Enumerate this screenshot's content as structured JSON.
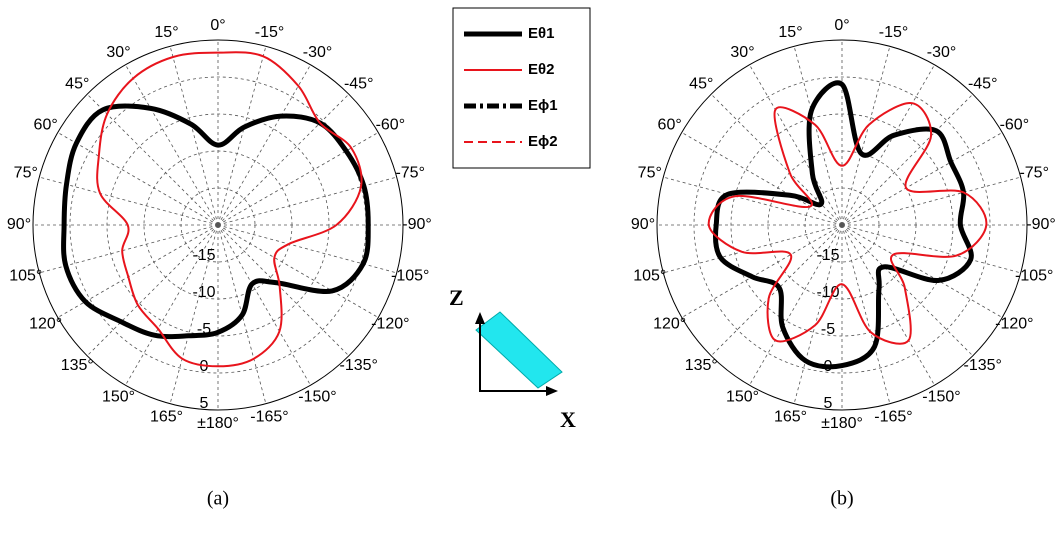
{
  "chart_data": [
    {
      "type": "polar",
      "caption": "(a)",
      "legend": "upper center",
      "theta": [
        0,
        15,
        30,
        45,
        60,
        75,
        90,
        105,
        120,
        135,
        150,
        165,
        180,
        -165,
        -150,
        -135,
        -120,
        -105,
        -90,
        -75,
        -60,
        -45,
        -30,
        -15
      ],
      "rlim": [
        -20,
        5
      ],
      "rticks": [
        -15,
        -10,
        -5,
        0,
        5
      ],
      "thetaticks": [
        {
          "value": 0,
          "label": "0°"
        },
        {
          "value": 15,
          "label": "15°"
        },
        {
          "value": 30,
          "label": "30°"
        },
        {
          "value": 45,
          "label": "45°"
        },
        {
          "value": 60,
          "label": "60°"
        },
        {
          "value": 75,
          "label": "75°"
        },
        {
          "value": 90,
          "label": "90°"
        },
        {
          "value": 105,
          "label": "105°"
        },
        {
          "value": 120,
          "label": "120°"
        },
        {
          "value": 135,
          "label": "135°"
        },
        {
          "value": 150,
          "label": "150°"
        },
        {
          "value": 165,
          "label": "165°"
        },
        {
          "value": 180,
          "label": "±180°"
        },
        {
          "value": -165,
          "label": "-165°"
        },
        {
          "value": -150,
          "label": "-150°"
        },
        {
          "value": -135,
          "label": "-135°"
        },
        {
          "value": -120,
          "label": "-120°"
        },
        {
          "value": -105,
          "label": "-105°"
        },
        {
          "value": -90,
          "label": "-90°"
        },
        {
          "value": -75,
          "label": "-75°"
        },
        {
          "value": -60,
          "label": "-60°"
        },
        {
          "value": -45,
          "label": "-45°"
        },
        {
          "value": -30,
          "label": "-30°"
        },
        {
          "value": -15,
          "label": "-15°"
        }
      ],
      "grid": true,
      "series": [
        {
          "name": "Eθ1",
          "color": "#000000",
          "dash": "solid",
          "values": [
            -9.2,
            -5.9,
            -1.8,
            2,
            2.1,
            1.2,
            0.8,
            1.3,
            0.7,
            -1.5,
            -2.8,
            -4.5,
            -5.5,
            -7.4,
            -10.8,
            -9,
            -2.2,
            0.3,
            0.3,
            0.4,
            0,
            -0.5,
            -3,
            -6.3
          ]
        },
        {
          "name": "Eθ2",
          "color": "#e8141c",
          "dash": "solid",
          "values": [
            3.3,
            3.5,
            2.9,
            1.2,
            -1.4,
            -3.5,
            -7.8,
            -6.6,
            -6,
            -4.7,
            -3.8,
            -1.3,
            -0.9,
            -1.3,
            -3.4,
            -8.2,
            -11.2,
            -10.1,
            -4,
            0,
            0.8,
            -0.5,
            1.7,
            3.6
          ]
        },
        {
          "name": "Eϕ1",
          "color": "#000000",
          "dash": "dashdot",
          "values": [
            -20,
            -20,
            -20,
            -20,
            -20,
            -20,
            -20,
            -20,
            -20,
            -20,
            -20,
            -20,
            -20,
            -20,
            -20,
            -20,
            -20,
            -20,
            -20,
            -20,
            -20,
            -20,
            -20,
            -20
          ]
        },
        {
          "name": "Eϕ2",
          "color": "#e8141c",
          "dash": "dashed",
          "values": [
            -20,
            -20,
            -20,
            -20,
            -20,
            -20,
            -20,
            -20,
            -20,
            -20,
            -20,
            -20,
            -20,
            -20,
            -20,
            -20,
            -20,
            -20,
            -20,
            -20,
            -20,
            -20,
            -20,
            -20
          ]
        }
      ]
    },
    {
      "type": "polar",
      "caption": "(b)",
      "theta": [
        0,
        15,
        30,
        45,
        60,
        75,
        90,
        105,
        120,
        135,
        150,
        165,
        180,
        -165,
        -150,
        -135,
        -120,
        -105,
        -90,
        -75,
        -60,
        -45,
        -30,
        -15
      ],
      "rlim": [
        -20,
        5
      ],
      "rticks": [
        -15,
        -10,
        -5,
        0,
        5
      ],
      "thetaticks": [
        {
          "value": 0,
          "label": "0°"
        },
        {
          "value": 15,
          "label": "15°"
        },
        {
          "value": 30,
          "label": "30°"
        },
        {
          "value": 45,
          "label": "45°"
        },
        {
          "value": 60,
          "label": "60°"
        },
        {
          "value": 75,
          "label": "75°"
        },
        {
          "value": 90,
          "label": "90°"
        },
        {
          "value": 105,
          "label": "105°"
        },
        {
          "value": 120,
          "label": "120°"
        },
        {
          "value": 135,
          "label": "135°"
        },
        {
          "value": 150,
          "label": "150°"
        },
        {
          "value": 165,
          "label": "165°"
        },
        {
          "value": 180,
          "label": "±180°"
        },
        {
          "value": -165,
          "label": "-165°"
        },
        {
          "value": -150,
          "label": "-150°"
        },
        {
          "value": -135,
          "label": "-135°"
        },
        {
          "value": -120,
          "label": "-120°"
        },
        {
          "value": -105,
          "label": "-105°"
        },
        {
          "value": -90,
          "label": "-90°"
        },
        {
          "value": -75,
          "label": "-75°"
        },
        {
          "value": -60,
          "label": "-60°"
        },
        {
          "value": -45,
          "label": "-45°"
        },
        {
          "value": -30,
          "label": "-30°"
        },
        {
          "value": -15,
          "label": "-15°"
        }
      ],
      "grid": true,
      "series": [
        {
          "name": "Eθ1",
          "color": "#000000",
          "dash": "solid",
          "values": [
            -1,
            -4,
            -12,
            -16,
            -12,
            -4,
            -3,
            -3,
            -6,
            -8,
            -4,
            -1,
            -1,
            -3,
            -10,
            -12,
            -5,
            -2,
            -4,
            -3,
            -3,
            -2,
            -6,
            -10
          ]
        },
        {
          "name": "Eθ2",
          "color": "#e8141c",
          "dash": "solid",
          "values": [
            -12,
            -6,
            -2,
            -10,
            -15,
            -5,
            -2,
            -6,
            -12,
            -6,
            -2,
            -6,
            -12,
            -5,
            -2,
            -8,
            -12,
            -4,
            -0.5,
            -3,
            -10,
            -3,
            -1,
            -6
          ]
        }
      ]
    }
  ],
  "inset": {
    "z_label": "Z",
    "x_label": "X"
  }
}
